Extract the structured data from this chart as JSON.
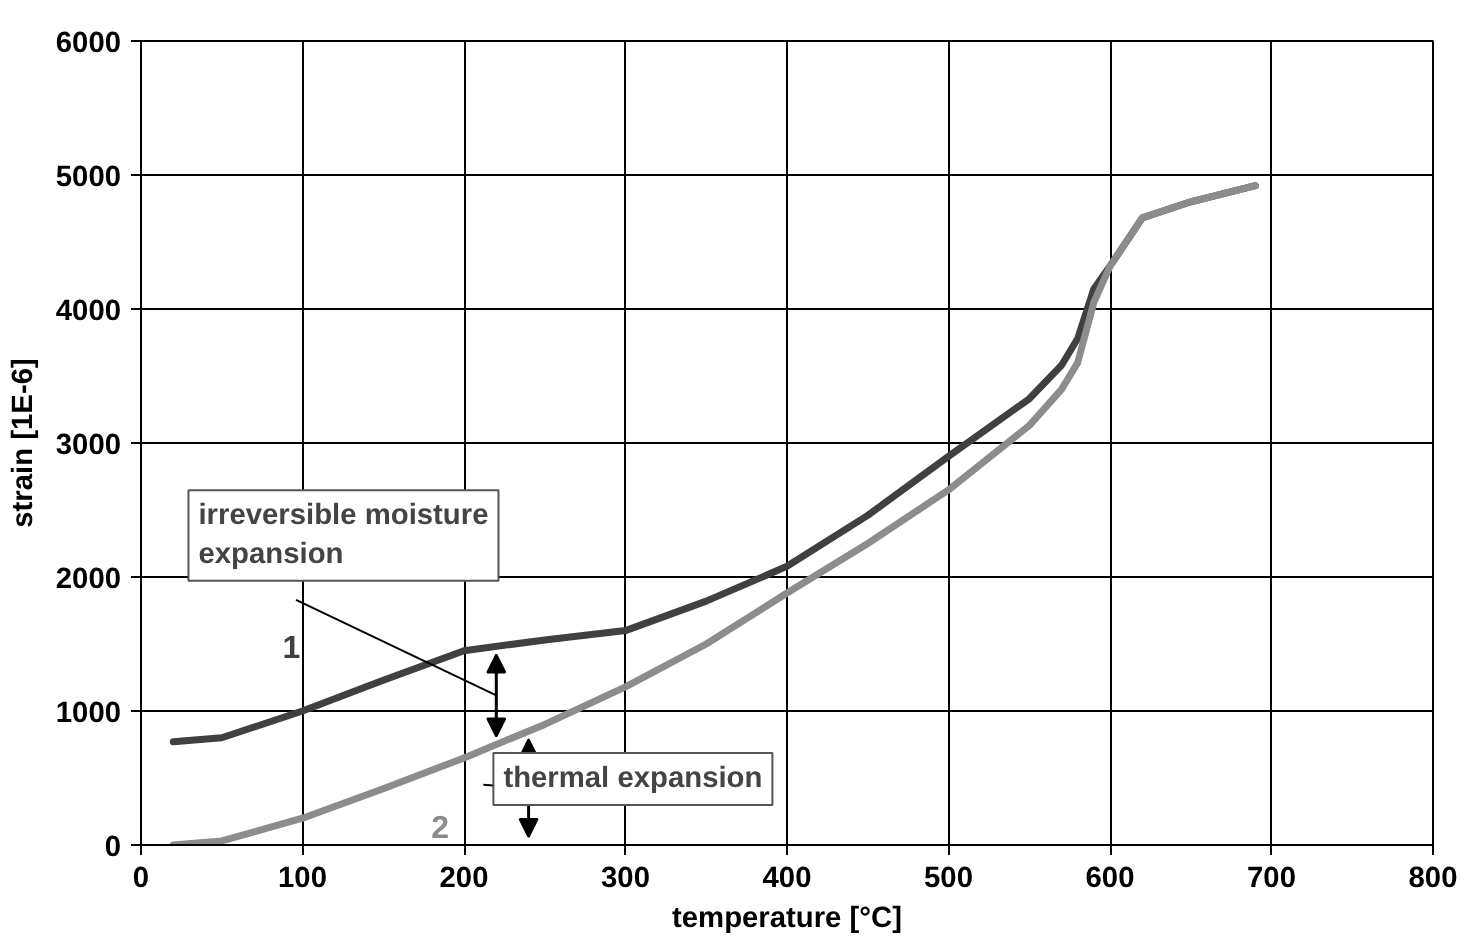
{
  "chart_data": {
    "type": "line",
    "xlabel": "temperature [°C]",
    "ylabel": "strain [1E-6]",
    "xlim": [
      0,
      800
    ],
    "xticks": [
      0,
      100,
      200,
      300,
      400,
      500,
      600,
      700,
      800
    ],
    "ylim": [
      0,
      6000
    ],
    "yticks": [
      0,
      1000,
      2000,
      3000,
      4000,
      5000,
      6000
    ],
    "grid": true,
    "series": [
      {
        "name": "1",
        "color": "#404040",
        "x": [
          20,
          50,
          100,
          150,
          200,
          250,
          300,
          350,
          400,
          450,
          500,
          550,
          570,
          580,
          590,
          600,
          620,
          650,
          690
        ],
        "values": [
          770,
          800,
          1000,
          1230,
          1450,
          1530,
          1600,
          1820,
          2080,
          2460,
          2900,
          3330,
          3580,
          3780,
          4150,
          4320,
          4680,
          4800,
          4920
        ]
      },
      {
        "name": "2",
        "color": "#8c8c8c",
        "x": [
          20,
          50,
          100,
          150,
          200,
          250,
          300,
          350,
          400,
          450,
          500,
          550,
          570,
          580,
          590,
          600,
          620,
          650,
          690
        ],
        "values": [
          0,
          30,
          200,
          420,
          650,
          900,
          1180,
          1500,
          1880,
          2250,
          2650,
          3130,
          3400,
          3600,
          4050,
          4320,
          4680,
          4800,
          4920
        ]
      }
    ],
    "annotations": [
      "irreversible moisture expansion",
      "thermal expansion"
    ]
  }
}
